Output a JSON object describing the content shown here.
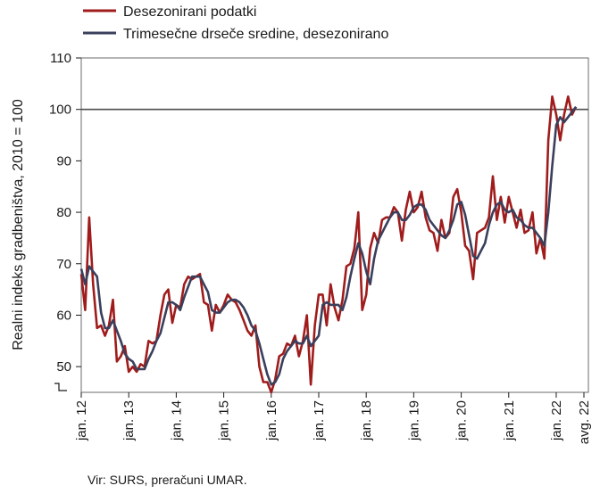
{
  "chart_data": {
    "type": "line",
    "title": "",
    "ylabel": "Realni indeks gradbeništva, 2010 = 100",
    "xlabel": "",
    "ylim": [
      45,
      110
    ],
    "y_axis_break": true,
    "yticks": [
      50,
      60,
      70,
      80,
      90,
      100,
      110
    ],
    "grid": false,
    "legend_position": "top-left",
    "reference_line": {
      "y": 100,
      "color": "#4d4d4d"
    },
    "x_tick_labels": [
      {
        "label": "jan. 12",
        "date": "2012-01"
      },
      {
        "label": "jan. 13",
        "date": "2013-01"
      },
      {
        "label": "jan. 14",
        "date": "2014-01"
      },
      {
        "label": "jan. 15",
        "date": "2015-01"
      },
      {
        "label": "jan. 16",
        "date": "2016-01"
      },
      {
        "label": "jan. 17",
        "date": "2017-01"
      },
      {
        "label": "jan. 18",
        "date": "2018-01"
      },
      {
        "label": "jan. 19",
        "date": "2019-01"
      },
      {
        "label": "jan. 20",
        "date": "2020-01"
      },
      {
        "label": "jan. 21",
        "date": "2021-01"
      },
      {
        "label": "jan. 22",
        "date": "2022-01"
      },
      {
        "label": "avg. 22",
        "date": "2022-08"
      }
    ],
    "x_start": "2012-01",
    "x_end": "2022-08",
    "series": [
      {
        "name": "Desezonirani podatki",
        "color": "#a01c1c",
        "values": [
          68.0,
          61.0,
          79.0,
          66.0,
          57.5,
          58.0,
          56.0,
          58.0,
          63.0,
          51.0,
          52.0,
          54.0,
          49.0,
          50.0,
          49.0,
          50.5,
          50.0,
          55.0,
          54.5,
          55.0,
          60.0,
          64.0,
          65.0,
          58.5,
          62.0,
          61.5,
          66.0,
          67.5,
          67.0,
          67.5,
          68.0,
          62.5,
          62.0,
          57.0,
          62.0,
          60.5,
          62.0,
          64.0,
          63.0,
          62.5,
          61.0,
          59.0,
          57.0,
          56.0,
          58.0,
          50.0,
          47.0,
          47.0,
          45.0,
          47.5,
          52.0,
          52.5,
          54.5,
          54.0,
          56.0,
          52.0,
          55.0,
          60.0,
          46.5,
          58.0,
          64.0,
          64.0,
          58.0,
          66.0,
          61.5,
          59.0,
          63.0,
          69.5,
          70.0,
          73.0,
          80.0,
          61.0,
          64.0,
          73.0,
          76.0,
          74.0,
          78.5,
          79.0,
          79.0,
          81.0,
          80.0,
          74.5,
          80.5,
          84.0,
          80.0,
          81.0,
          84.0,
          79.0,
          76.5,
          76.0,
          72.5,
          78.5,
          75.0,
          76.0,
          83.0,
          84.5,
          80.0,
          73.5,
          72.5,
          67.0,
          76.0,
          76.5,
          77.0,
          79.0,
          87.0,
          78.5,
          83.0,
          78.0,
          83.0,
          80.0,
          77.0,
          80.5,
          76.0,
          76.5,
          80.0,
          72.0,
          75.0,
          71.0,
          94.0,
          102.5,
          99.0,
          94.0,
          99.0,
          102.5,
          99.0,
          100.5
        ]
      },
      {
        "name": "Trimesečne drseče sredine, desezonirano",
        "color": "#3a3f5c",
        "values": [
          69.0,
          66.0,
          69.5,
          68.5,
          67.5,
          60.5,
          57.5,
          57.5,
          59.0,
          57.0,
          55.0,
          52.5,
          51.5,
          51.0,
          49.5,
          49.5,
          49.5,
          51.5,
          53.0,
          55.0,
          56.5,
          59.5,
          62.5,
          62.5,
          62.0,
          61.0,
          63.5,
          65.5,
          67.5,
          67.5,
          67.5,
          66.0,
          64.5,
          61.0,
          60.5,
          60.5,
          61.5,
          62.5,
          63.0,
          63.0,
          62.5,
          61.5,
          60.0,
          58.0,
          57.0,
          54.5,
          51.5,
          48.5,
          46.5,
          47.0,
          48.5,
          51.5,
          53.0,
          54.0,
          55.0,
          54.5,
          54.5,
          56.0,
          54.0,
          55.0,
          56.0,
          62.0,
          62.5,
          62.0,
          62.0,
          62.0,
          61.0,
          63.5,
          67.5,
          71.0,
          74.0,
          72.0,
          68.5,
          66.0,
          71.0,
          74.5,
          76.0,
          77.5,
          79.0,
          80.0,
          80.0,
          78.5,
          78.5,
          79.5,
          81.0,
          81.5,
          81.5,
          80.5,
          78.5,
          77.5,
          76.5,
          75.5,
          75.0,
          76.5,
          78.5,
          81.5,
          82.0,
          79.5,
          75.5,
          71.5,
          71.0,
          72.5,
          74.0,
          77.5,
          80.0,
          81.5,
          82.0,
          80.5,
          80.0,
          80.5,
          79.0,
          78.5,
          77.5,
          77.0,
          77.0,
          76.0,
          75.0,
          73.5,
          80.0,
          89.0,
          97.0,
          98.5,
          97.5,
          98.5,
          99.5,
          100.5
        ]
      }
    ],
    "source": "Vir: SURS, preračuni UMAR."
  }
}
